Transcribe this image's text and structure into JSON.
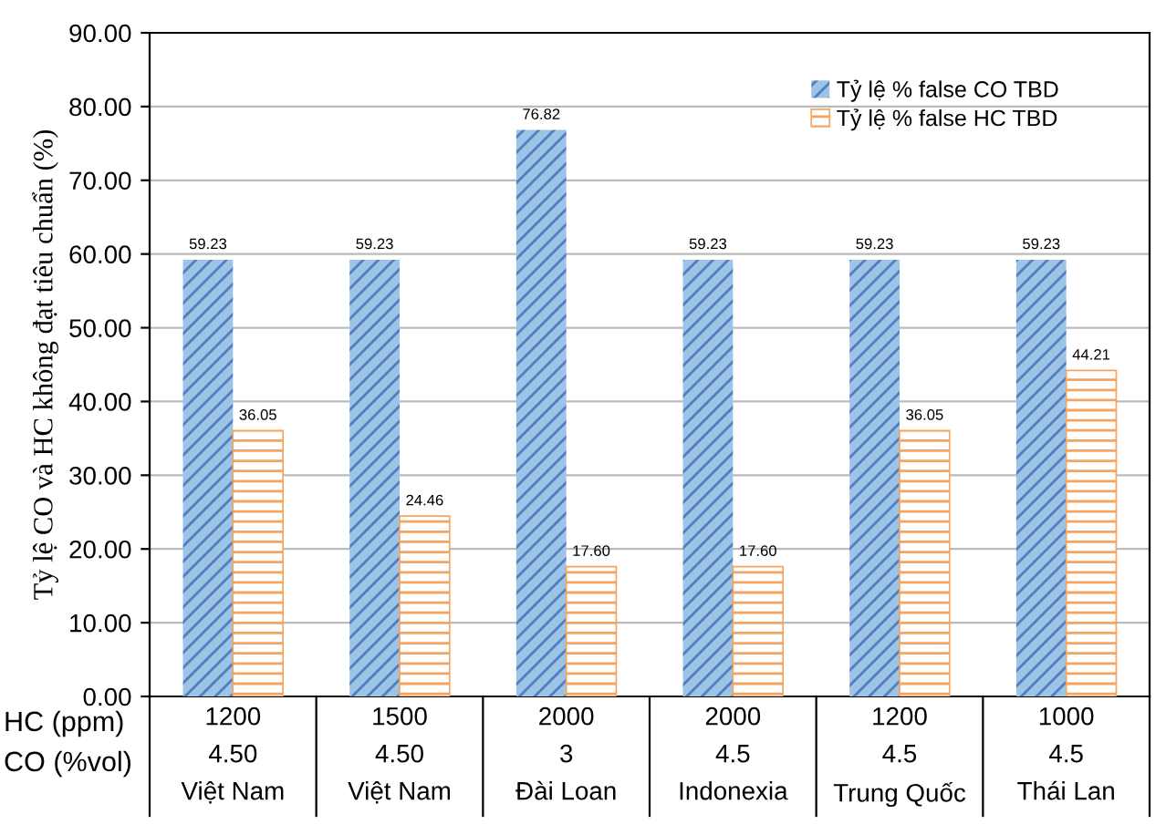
{
  "chart_data": {
    "type": "bar",
    "ylabel": "Tỷ lệ CO và HC không đạt tiêu chuẩn (%)",
    "categories": [
      "1200\n4.50\nViệt Nam",
      "1500\n4.50\nViệt Nam",
      "2000\n3\nĐài Loan",
      "2000\n4.5\nIndonexia",
      "1200\n4.5\nTrung Quốc",
      "1000\n4.5\nThái Lan"
    ],
    "series": [
      {
        "name": "Tỷ lệ % false CO TBD",
        "color": "#9dc3e6",
        "values": [
          59.23,
          59.23,
          76.82,
          59.23,
          59.23,
          59.23
        ]
      },
      {
        "name": "Tỷ lệ % false HC TBD",
        "color": "#f4a460",
        "values": [
          36.05,
          24.46,
          17.6,
          17.6,
          36.05,
          44.21
        ]
      }
    ],
    "value_labels": [
      [
        "59.23",
        "59.23",
        "76.82",
        "59.23",
        "59.23",
        "59.23"
      ],
      [
        "36.05",
        "24.46",
        "17.60",
        "17.60",
        "36.05",
        "44.21"
      ]
    ],
    "annotations": [
      "HC (ppm)",
      "CO (%vol)"
    ],
    "ylim": [
      0,
      90
    ],
    "yticks": [
      {
        "value": 0,
        "label": "0.00"
      },
      {
        "value": 10,
        "label": "10.00"
      },
      {
        "value": 20,
        "label": "20.00"
      },
      {
        "value": 30,
        "label": "30.00"
      },
      {
        "value": 40,
        "label": "40.00"
      },
      {
        "value": 50,
        "label": "50.00"
      },
      {
        "value": 60,
        "label": "60.00"
      },
      {
        "value": 70,
        "label": "70.00"
      },
      {
        "value": 80,
        "label": "80.00"
      },
      {
        "value": 90,
        "label": "90.00"
      }
    ],
    "grid": "y",
    "legend": "top right"
  }
}
